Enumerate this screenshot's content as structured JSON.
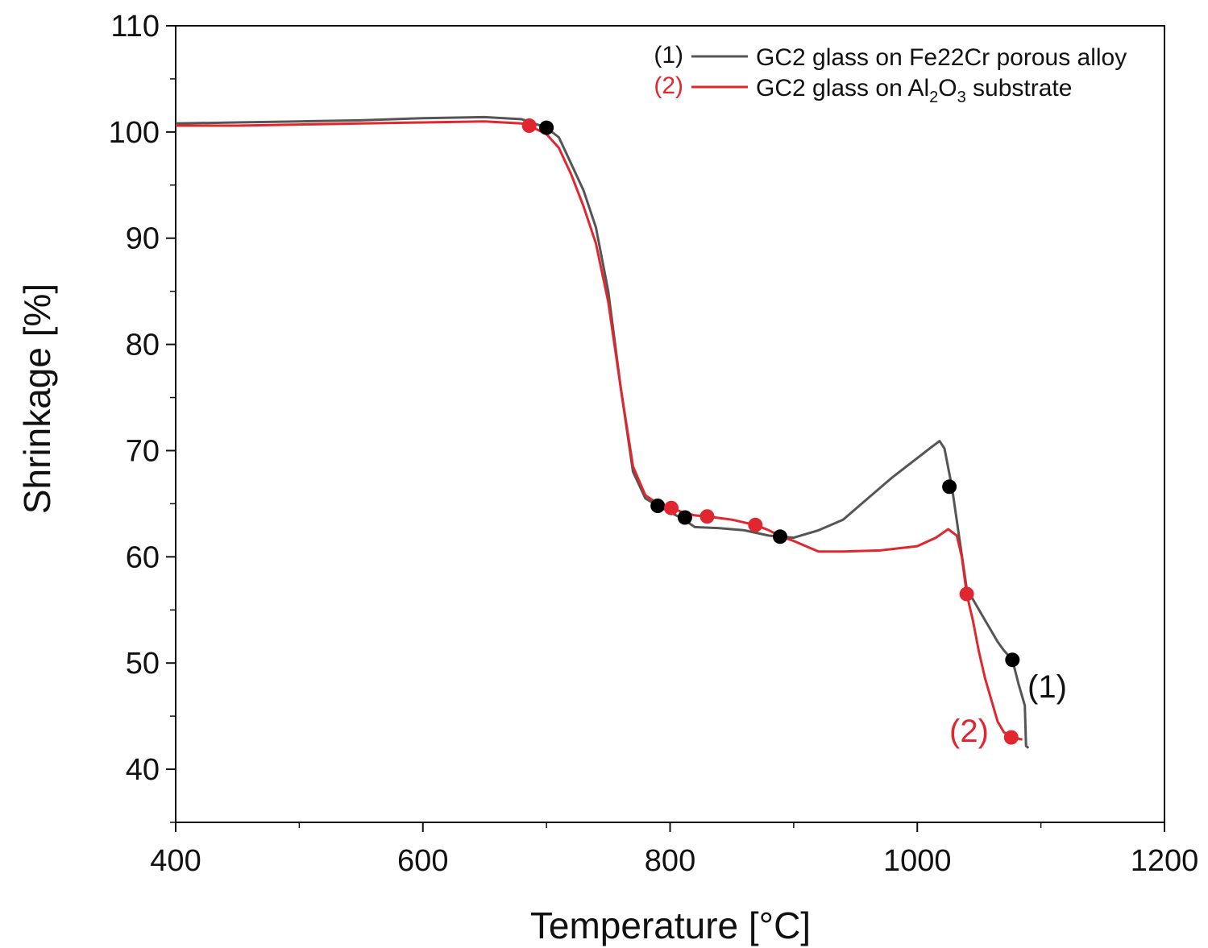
{
  "chart_data": {
    "type": "line",
    "title": "",
    "xlabel": "Temperature [°C]",
    "ylabel": "Shrinkage [%]",
    "xlim": [
      400,
      1200
    ],
    "ylim": [
      35,
      110
    ],
    "x_ticks": [
      400,
      600,
      800,
      1000,
      1200
    ],
    "y_ticks": [
      40,
      50,
      60,
      70,
      80,
      90,
      100,
      110
    ],
    "x_minor_step": 100,
    "y_minor_step": 5,
    "grid": false,
    "legend_position": "top-right",
    "series": [
      {
        "name": "GC2 glass on Fe22Cr porous alloy",
        "legend_index": "(1)",
        "end_label": "(1)",
        "color": "#555555",
        "points": [
          [
            400,
            100.8
          ],
          [
            450,
            100.9
          ],
          [
            500,
            101.0
          ],
          [
            550,
            101.1
          ],
          [
            600,
            101.3
          ],
          [
            650,
            101.4
          ],
          [
            680,
            101.2
          ],
          [
            700,
            100.4
          ],
          [
            710,
            99.5
          ],
          [
            720,
            97.0
          ],
          [
            730,
            94.5
          ],
          [
            740,
            91.0
          ],
          [
            750,
            85.0
          ],
          [
            760,
            76.0
          ],
          [
            770,
            68.0
          ],
          [
            780,
            65.5
          ],
          [
            790,
            64.8
          ],
          [
            800,
            64.2
          ],
          [
            810,
            63.6
          ],
          [
            820,
            62.8
          ],
          [
            840,
            62.7
          ],
          [
            860,
            62.5
          ],
          [
            880,
            62.0
          ],
          [
            890,
            61.9
          ],
          [
            900,
            61.8
          ],
          [
            920,
            62.5
          ],
          [
            940,
            63.5
          ],
          [
            960,
            65.5
          ],
          [
            980,
            67.5
          ],
          [
            1000,
            69.3
          ],
          [
            1010,
            70.2
          ],
          [
            1018,
            70.9
          ],
          [
            1022,
            70.2
          ],
          [
            1028,
            66.6
          ],
          [
            1035,
            61.0
          ],
          [
            1040,
            57.0
          ],
          [
            1045,
            56.0
          ],
          [
            1050,
            55.0
          ],
          [
            1055,
            54.0
          ],
          [
            1060,
            53.0
          ],
          [
            1065,
            52.0
          ],
          [
            1070,
            51.2
          ],
          [
            1077,
            50.3
          ],
          [
            1082,
            48.0
          ],
          [
            1087,
            46.0
          ],
          [
            1088,
            42.2
          ],
          [
            1090,
            42.0
          ]
        ],
        "markers": [
          [
            700,
            100.4
          ],
          [
            790,
            64.8
          ],
          [
            812,
            63.7
          ],
          [
            889,
            61.9
          ],
          [
            1026,
            66.6
          ],
          [
            1077,
            50.3
          ]
        ]
      },
      {
        "name": "GC2 glass on Al2O3 substrate",
        "name_parts": [
          "GC2 glass on Al",
          "2",
          "O",
          "3",
          " substrate"
        ],
        "legend_index": "(2)",
        "end_label": "(2)",
        "color": "#e0262e",
        "points": [
          [
            400,
            100.6
          ],
          [
            450,
            100.6
          ],
          [
            500,
            100.7
          ],
          [
            550,
            100.8
          ],
          [
            600,
            100.9
          ],
          [
            650,
            101.0
          ],
          [
            680,
            100.8
          ],
          [
            686,
            100.6
          ],
          [
            700,
            99.8
          ],
          [
            710,
            98.5
          ],
          [
            720,
            96.0
          ],
          [
            730,
            93.0
          ],
          [
            740,
            89.5
          ],
          [
            750,
            84.0
          ],
          [
            760,
            76.0
          ],
          [
            770,
            68.5
          ],
          [
            780,
            65.8
          ],
          [
            790,
            65.0
          ],
          [
            801,
            64.6
          ],
          [
            810,
            64.2
          ],
          [
            820,
            63.9
          ],
          [
            830,
            63.8
          ],
          [
            850,
            63.5
          ],
          [
            869,
            63.0
          ],
          [
            880,
            62.5
          ],
          [
            890,
            61.9
          ],
          [
            900,
            61.5
          ],
          [
            920,
            60.5
          ],
          [
            940,
            60.5
          ],
          [
            970,
            60.6
          ],
          [
            1000,
            61.0
          ],
          [
            1015,
            61.8
          ],
          [
            1025,
            62.6
          ],
          [
            1032,
            62.0
          ],
          [
            1036,
            60.0
          ],
          [
            1040,
            56.5
          ],
          [
            1045,
            54.0
          ],
          [
            1050,
            51.0
          ],
          [
            1055,
            48.5
          ],
          [
            1060,
            46.5
          ],
          [
            1065,
            44.5
          ],
          [
            1070,
            43.5
          ],
          [
            1076,
            43.0
          ],
          [
            1085,
            42.8
          ]
        ],
        "markers": [
          [
            686,
            100.6
          ],
          [
            801,
            64.6
          ],
          [
            830,
            63.8
          ],
          [
            869,
            63.0
          ],
          [
            1040,
            56.5
          ],
          [
            1076,
            43.0
          ]
        ]
      }
    ]
  }
}
